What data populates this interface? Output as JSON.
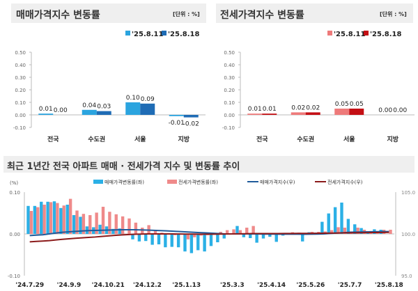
{
  "charts_top": [
    {
      "title": "매매가격지수 변동률",
      "unit": "[단위 : %]",
      "legend": [
        "'25.8.11",
        "'25.8.18"
      ],
      "colors": [
        "#2ba4df",
        "#1f6cb5"
      ]
    },
    {
      "title": "전세가격지수 변동률",
      "unit": "[단위 : %]",
      "legend": [
        "'25.8.11",
        "'25.8.18"
      ],
      "colors": [
        "#ee7a7a",
        "#c40f14"
      ]
    }
  ],
  "bottom": {
    "title": "최근 1년간 전국 아파트 매매 · 전세가격 지수 및 변동률 추이",
    "left_unit": "(%)",
    "legend": [
      "매매가격변동률(좌)",
      "전세가격변동률(좌)",
      "매매가격지수(우)",
      "전세가격지수(우)"
    ],
    "colors": [
      "#2bb0e6",
      "#ef8a8a",
      "#1f5a9a",
      "#8b1a1a"
    ]
  },
  "chart_data": [
    {
      "type": "bar",
      "title": "매매가격지수 변동률",
      "categories": [
        "전국",
        "수도권",
        "서울",
        "지방"
      ],
      "series": [
        {
          "name": "'25.8.11",
          "values": [
            0.01,
            0.04,
            0.1,
            -0.01
          ]
        },
        {
          "name": "'25.8.18",
          "values": [
            0.0,
            0.03,
            0.09,
            -0.02
          ]
        }
      ],
      "labels": [
        [
          "0.01",
          "0.04",
          "0.10",
          "-0.01"
        ],
        [
          "0.00",
          "0.03",
          "0.09",
          "-0.02"
        ]
      ],
      "ylim": [
        -0.1,
        0.5
      ],
      "yticks": [
        "0.50",
        "0.40",
        "0.30",
        "0.20",
        "0.10",
        "0.00",
        "-0.10"
      ],
      "legend": "top-right"
    },
    {
      "type": "bar",
      "title": "전세가격지수 변동률",
      "categories": [
        "전국",
        "수도권",
        "서울",
        "지방"
      ],
      "series": [
        {
          "name": "'25.8.11",
          "values": [
            0.01,
            0.02,
            0.05,
            0.0
          ]
        },
        {
          "name": "'25.8.18",
          "values": [
            0.01,
            0.02,
            0.05,
            0.0
          ]
        }
      ],
      "labels": [
        [
          "0.01",
          "0.02",
          "0.05",
          "0.00"
        ],
        [
          "0.01",
          "0.02",
          "0.05",
          "0.00"
        ]
      ],
      "ylim": [
        -0.1,
        0.5
      ],
      "yticks": [
        "0.50",
        "0.40",
        "0.30",
        "0.20",
        "0.10",
        "0.00",
        "-0.10"
      ],
      "legend": "top-right"
    },
    {
      "type": "bar+line",
      "title": "최근 1년간 전국 아파트 매매 · 전세가격 지수 및 변동률 추이",
      "xtick_labels": [
        "'24.7.29",
        "'24.9.9",
        "'24.10.21",
        "'24.12.2",
        "'25.1.13",
        "'25.3.3",
        "'25.4.14",
        "'25.5.26",
        "'25.7.7",
        "'25.8.18"
      ],
      "xtick_index": [
        0,
        6,
        12,
        18,
        24,
        31,
        37,
        43,
        49,
        55
      ],
      "ylim_left": [
        -0.1,
        0.1
      ],
      "yticks_left": [
        "0.10",
        "0.00",
        "-0.10"
      ],
      "ylim_right": [
        95.0,
        105.0
      ],
      "yticks_right": [
        "105.0",
        "100.0",
        "95.0"
      ],
      "legend": "top",
      "series": [
        {
          "name": "매매가격변동률(좌)",
          "type": "bar",
          "values": [
            0.067,
            0.067,
            0.077,
            0.077,
            0.078,
            0.062,
            0.07,
            0.045,
            0.041,
            0.018,
            0.016,
            0.022,
            0.018,
            0.012,
            0.013,
            0.0,
            -0.013,
            -0.018,
            -0.017,
            -0.026,
            -0.025,
            -0.032,
            -0.031,
            -0.032,
            -0.042,
            -0.046,
            -0.039,
            -0.042,
            -0.029,
            -0.02,
            -0.011,
            0.0,
            0.019,
            -0.008,
            -0.01,
            -0.021,
            -0.011,
            -0.007,
            -0.019,
            -0.004,
            0.0,
            0.0,
            -0.018,
            0.004,
            0.003,
            0.029,
            0.049,
            0.064,
            0.075,
            0.036,
            0.023,
            0.014,
            0.006,
            0.011,
            0.01,
            0.0
          ]
        },
        {
          "name": "전세가격변동률(좌)",
          "type": "bar",
          "values": [
            0.055,
            0.064,
            0.07,
            0.076,
            0.074,
            0.068,
            0.084,
            0.056,
            0.048,
            0.045,
            0.051,
            0.065,
            0.053,
            0.047,
            0.042,
            0.037,
            0.027,
            0.015,
            0.021,
            0.01,
            0.003,
            0.0,
            -0.003,
            0.0,
            -0.013,
            -0.008,
            -0.004,
            -0.003,
            0.0,
            0.005,
            0.009,
            0.011,
            0.009,
            0.015,
            0.019,
            0.0,
            0.002,
            0.0,
            0.0,
            0.002,
            0.004,
            0.003,
            0.0,
            0.005,
            0.005,
            0.006,
            0.009,
            0.016,
            0.015,
            0.006,
            0.015,
            0.01,
            0.007,
            0.007,
            0.01,
            0.01
          ]
        },
        {
          "name": "매매가격지수(우)",
          "type": "line",
          "values": [
            99.8,
            99.85,
            99.9,
            100.0,
            100.1,
            100.2,
            100.25,
            100.3,
            100.35,
            100.4,
            100.42,
            100.44,
            100.46,
            100.48,
            100.5,
            100.5,
            100.5,
            100.48,
            100.46,
            100.43,
            100.4,
            100.36,
            100.32,
            100.28,
            100.24,
            100.2,
            100.16,
            100.12,
            100.08,
            100.04,
            100.0,
            100.0,
            100.0,
            100.0,
            100.0,
            99.99,
            99.98,
            99.98,
            99.97,
            99.97,
            99.97,
            99.97,
            99.96,
            99.97,
            99.98,
            100.0,
            100.05,
            100.1,
            100.15,
            100.2,
            100.22,
            100.24,
            100.25,
            100.26,
            100.28,
            100.28
          ]
        },
        {
          "name": "전세가격지수(우)",
          "type": "line",
          "values": [
            99.05,
            99.1,
            99.15,
            99.2,
            99.28,
            99.35,
            99.42,
            99.48,
            99.53,
            99.58,
            99.63,
            99.7,
            99.76,
            99.82,
            99.87,
            99.92,
            99.96,
            99.98,
            100.0,
            100.0,
            100.0,
            100.0,
            100.0,
            99.99,
            99.98,
            99.98,
            99.97,
            99.97,
            99.97,
            99.98,
            99.99,
            100.0,
            100.01,
            100.02,
            100.04,
            100.04,
            100.04,
            100.04,
            100.04,
            100.05,
            100.05,
            100.06,
            100.06,
            100.06,
            100.07,
            100.08,
            100.09,
            100.1,
            100.12,
            100.13,
            100.14,
            100.15,
            100.16,
            100.17,
            100.18,
            100.19
          ]
        }
      ]
    }
  ]
}
